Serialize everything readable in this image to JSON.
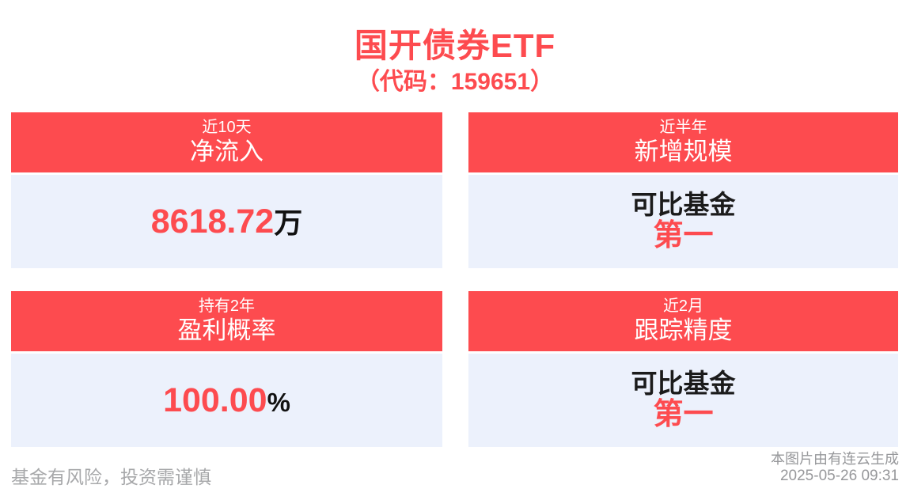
{
  "page": {
    "title": "国开债券ETF",
    "subtitle": "（代码：159651）"
  },
  "cards": [
    {
      "period": "近10天",
      "metric": "净流入",
      "value": "8618.72",
      "unit": "万"
    },
    {
      "period": "近半年",
      "metric": "新增规模",
      "rank_label": "可比基金",
      "rank": "第一"
    },
    {
      "period": "持有2年",
      "metric": "盈利概率",
      "value": "100.00",
      "unit": "%"
    },
    {
      "period": "近2月",
      "metric": "跟踪精度",
      "rank_label": "可比基金",
      "rank": "第一"
    }
  ],
  "footer": {
    "disclaimer": "基金有风险，投资需谨慎",
    "source": "本图片由有连云生成",
    "timestamp": "2025-05-26 09:31"
  },
  "colors": {
    "accent_red": "#FD4B4F",
    "card_body_bg": "#ECF1FC",
    "text_black": "#111111",
    "muted_gray": "#a0a1a4"
  }
}
